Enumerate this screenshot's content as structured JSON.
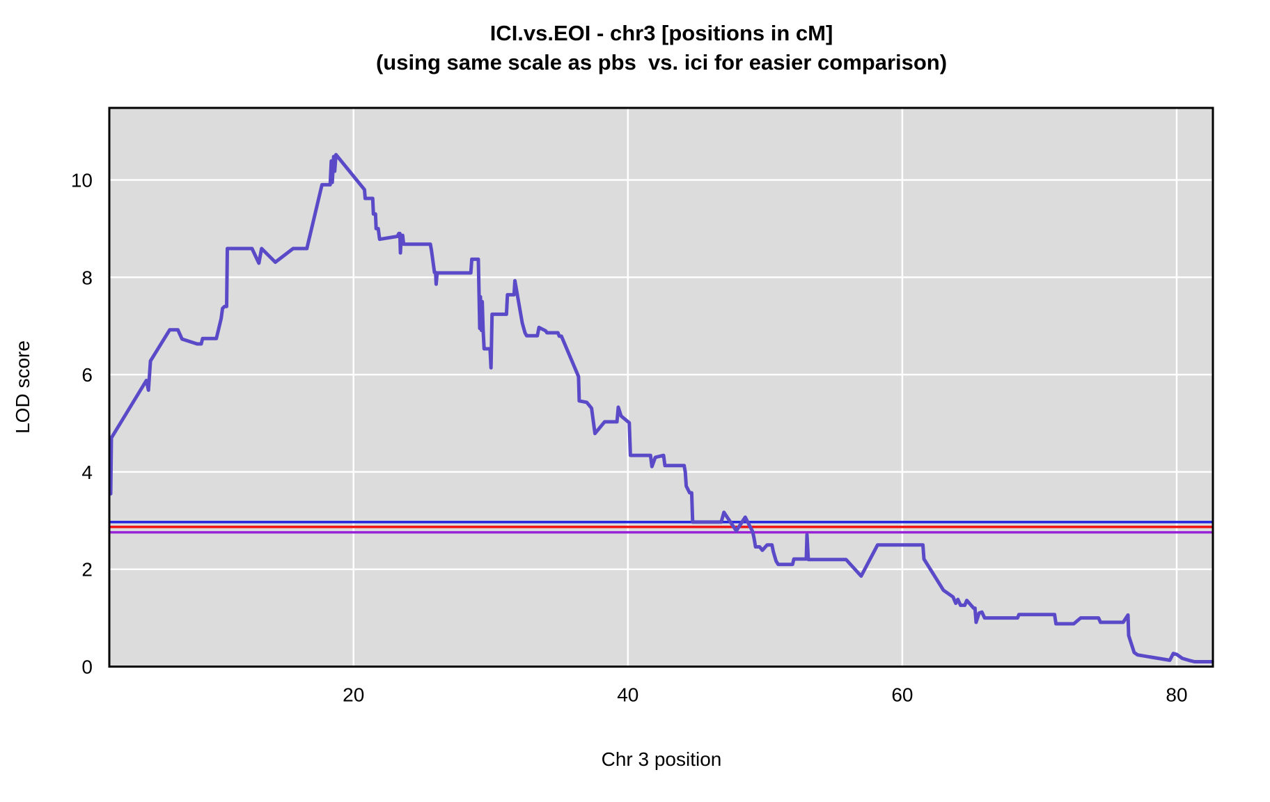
{
  "chart_data": {
    "type": "line",
    "title": "ICI.vs.EOI - chr3 [positions in cM]",
    "subtitle": "(using same scale as pbs  vs. ici for easier comparison)",
    "xlabel": "Chr 3 position",
    "ylabel": "LOD score",
    "xlim": [
      2.2,
      82.64
    ],
    "ylim": [
      0,
      11.48
    ],
    "x_ticks": [
      20,
      40,
      60,
      80
    ],
    "y_ticks": [
      0,
      2,
      4,
      6,
      8,
      10
    ],
    "grid": true,
    "legend": "none",
    "plot_bg_color": "#dcdcdc",
    "grid_color": "#ffffff",
    "frame_color": "#000000",
    "thresholds": [
      {
        "name": "upper-threshold",
        "value": 2.97,
        "color": "#2222dd"
      },
      {
        "name": "middle-threshold",
        "value": 2.87,
        "color": "#ee1111"
      },
      {
        "name": "lower-threshold",
        "value": 2.76,
        "color": "#9a22d6"
      }
    ],
    "series": [
      {
        "name": "LOD curve",
        "color": "#5a4ac8",
        "points": [
          [
            2.3,
            3.55
          ],
          [
            2.35,
            4.7
          ],
          [
            4.9,
            5.88
          ],
          [
            5.05,
            5.68
          ],
          [
            5.2,
            6.28
          ],
          [
            6.6,
            6.92
          ],
          [
            7.2,
            6.92
          ],
          [
            7.5,
            6.73
          ],
          [
            8.6,
            6.63
          ],
          [
            8.9,
            6.63
          ],
          [
            9.0,
            6.74
          ],
          [
            10.0,
            6.74
          ],
          [
            10.35,
            7.15
          ],
          [
            10.45,
            7.36
          ],
          [
            10.6,
            7.4
          ],
          [
            10.75,
            7.4
          ],
          [
            10.8,
            8.59
          ],
          [
            12.6,
            8.59
          ],
          [
            13.1,
            8.29
          ],
          [
            13.3,
            8.59
          ],
          [
            14.3,
            8.31
          ],
          [
            15.6,
            8.59
          ],
          [
            16.6,
            8.59
          ],
          [
            17.7,
            9.9
          ],
          [
            18.3,
            9.9
          ],
          [
            18.38,
            10.39
          ],
          [
            18.45,
            9.95
          ],
          [
            18.55,
            10.48
          ],
          [
            18.63,
            10.18
          ],
          [
            18.72,
            10.52
          ],
          [
            20.8,
            9.8
          ],
          [
            20.85,
            9.62
          ],
          [
            21.4,
            9.62
          ],
          [
            21.45,
            9.3
          ],
          [
            21.6,
            9.3
          ],
          [
            21.65,
            9.0
          ],
          [
            21.8,
            9.0
          ],
          [
            21.9,
            8.78
          ],
          [
            23.2,
            8.84
          ],
          [
            23.3,
            8.9
          ],
          [
            23.38,
            8.9
          ],
          [
            23.42,
            8.5
          ],
          [
            23.48,
            8.86
          ],
          [
            23.58,
            8.86
          ],
          [
            23.65,
            8.68
          ],
          [
            25.6,
            8.68
          ],
          [
            25.68,
            8.55
          ],
          [
            25.9,
            8.1
          ],
          [
            25.98,
            8.1
          ],
          [
            26.02,
            7.86
          ],
          [
            26.1,
            8.09
          ],
          [
            28.55,
            8.09
          ],
          [
            28.62,
            8.37
          ],
          [
            29.1,
            8.37
          ],
          [
            29.15,
            7.67
          ],
          [
            29.2,
            6.95
          ],
          [
            29.25,
            7.6
          ],
          [
            29.32,
            6.91
          ],
          [
            29.38,
            7.5
          ],
          [
            29.45,
            6.91
          ],
          [
            29.52,
            6.53
          ],
          [
            29.95,
            6.53
          ],
          [
            30.02,
            6.14
          ],
          [
            30.1,
            7.24
          ],
          [
            31.15,
            7.24
          ],
          [
            31.22,
            7.64
          ],
          [
            31.7,
            7.64
          ],
          [
            31.76,
            7.93
          ],
          [
            31.85,
            7.79
          ],
          [
            32.3,
            7.06
          ],
          [
            32.5,
            6.86
          ],
          [
            32.62,
            6.8
          ],
          [
            33.4,
            6.8
          ],
          [
            33.52,
            6.97
          ],
          [
            34.0,
            6.9
          ],
          [
            34.1,
            6.86
          ],
          [
            34.9,
            6.86
          ],
          [
            35.0,
            6.79
          ],
          [
            35.15,
            6.79
          ],
          [
            36.4,
            5.96
          ],
          [
            36.45,
            5.46
          ],
          [
            37.0,
            5.43
          ],
          [
            37.35,
            5.31
          ],
          [
            37.6,
            4.79
          ],
          [
            38.3,
            5.03
          ],
          [
            39.2,
            5.03
          ],
          [
            39.3,
            5.33
          ],
          [
            39.5,
            5.15
          ],
          [
            40.1,
            5.01
          ],
          [
            40.18,
            4.34
          ],
          [
            41.65,
            4.34
          ],
          [
            41.75,
            4.11
          ],
          [
            42.0,
            4.3
          ],
          [
            42.6,
            4.34
          ],
          [
            42.7,
            4.13
          ],
          [
            44.1,
            4.13
          ],
          [
            44.18,
            4.0
          ],
          [
            44.25,
            3.71
          ],
          [
            44.5,
            3.57
          ],
          [
            44.65,
            3.57
          ],
          [
            44.72,
            2.97
          ],
          [
            46.8,
            2.97
          ],
          [
            47.0,
            3.17
          ],
          [
            47.9,
            2.79
          ],
          [
            48.55,
            3.07
          ],
          [
            49.1,
            2.77
          ],
          [
            49.2,
            2.63
          ],
          [
            49.3,
            2.46
          ],
          [
            49.6,
            2.46
          ],
          [
            49.8,
            2.39
          ],
          [
            50.15,
            2.5
          ],
          [
            50.5,
            2.5
          ],
          [
            50.6,
            2.36
          ],
          [
            50.8,
            2.17
          ],
          [
            50.95,
            2.1
          ],
          [
            52.0,
            2.1
          ],
          [
            52.1,
            2.21
          ],
          [
            52.6,
            2.21
          ],
          [
            53.0,
            2.21
          ],
          [
            53.05,
            2.71
          ],
          [
            53.15,
            2.2
          ],
          [
            55.9,
            2.2
          ],
          [
            57.0,
            1.86
          ],
          [
            58.2,
            2.5
          ],
          [
            61.5,
            2.5
          ],
          [
            61.58,
            2.21
          ],
          [
            63.0,
            1.57
          ],
          [
            63.7,
            1.43
          ],
          [
            63.9,
            1.3
          ],
          [
            64.05,
            1.38
          ],
          [
            64.25,
            1.26
          ],
          [
            64.55,
            1.26
          ],
          [
            64.7,
            1.36
          ],
          [
            65.2,
            1.2
          ],
          [
            65.3,
            1.2
          ],
          [
            65.38,
            0.91
          ],
          [
            65.6,
            1.1
          ],
          [
            65.8,
            1.12
          ],
          [
            66.0,
            1.0
          ],
          [
            68.4,
            1.0
          ],
          [
            68.5,
            1.07
          ],
          [
            71.1,
            1.07
          ],
          [
            71.2,
            0.88
          ],
          [
            72.5,
            0.88
          ],
          [
            73.0,
            1.0
          ],
          [
            74.3,
            1.0
          ],
          [
            74.45,
            0.91
          ],
          [
            76.1,
            0.91
          ],
          [
            76.45,
            1.06
          ],
          [
            76.5,
            0.64
          ],
          [
            76.9,
            0.29
          ],
          [
            77.15,
            0.24
          ],
          [
            79.5,
            0.13
          ],
          [
            79.75,
            0.27
          ],
          [
            80.0,
            0.25
          ],
          [
            80.4,
            0.17
          ],
          [
            81.0,
            0.12
          ],
          [
            81.3,
            0.1
          ],
          [
            82.6,
            0.1
          ]
        ]
      }
    ]
  }
}
